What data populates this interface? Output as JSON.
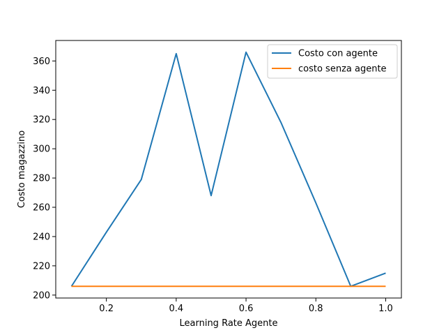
{
  "chart_data": {
    "type": "line",
    "title": "",
    "xlabel": "Learning Rate Agente",
    "ylabel": "Costo magazzino",
    "xlim": [
      0.055,
      1.045
    ],
    "ylim": [
      198,
      374
    ],
    "xticks": [
      0.2,
      0.4,
      0.6,
      0.8,
      1.0
    ],
    "xtick_labels": [
      "0.2",
      "0.4",
      "0.6",
      "0.8",
      "1.0"
    ],
    "yticks": [
      200,
      220,
      240,
      260,
      280,
      300,
      320,
      340,
      360
    ],
    "ytick_labels": [
      "200",
      "220",
      "240",
      "260",
      "280",
      "300",
      "320",
      "340",
      "360"
    ],
    "grid": false,
    "legend_position": "top-right",
    "series": [
      {
        "name": "Costo con agente",
        "color": "#1f77b4",
        "x": [
          0.1,
          0.2,
          0.3,
          0.4,
          0.5,
          0.6,
          0.7,
          0.8,
          0.9,
          1.0
        ],
        "y": [
          206,
          243,
          279,
          365,
          268,
          366,
          318,
          263,
          206,
          215
        ]
      },
      {
        "name": "costo senza agente",
        "color": "#ff7f0e",
        "x": [
          0.1,
          0.2,
          0.3,
          0.4,
          0.5,
          0.6,
          0.7,
          0.8,
          0.9,
          1.0
        ],
        "y": [
          206,
          206,
          206,
          206,
          206,
          206,
          206,
          206,
          206,
          206
        ]
      }
    ]
  }
}
